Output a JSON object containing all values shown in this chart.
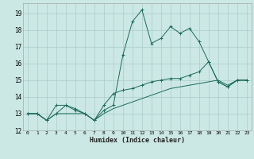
{
  "xlabel": "Humidex (Indice chaleur)",
  "background_color": "#cce8e4",
  "grid_color": "#aacccc",
  "line_color": "#1a6b5a",
  "x_range": [
    -0.5,
    23.5
  ],
  "y_range": [
    12.0,
    19.6
  ],
  "yticks": [
    12,
    13,
    14,
    15,
    16,
    17,
    18,
    19
  ],
  "xticks": [
    0,
    1,
    2,
    3,
    4,
    5,
    6,
    7,
    8,
    9,
    10,
    11,
    12,
    13,
    14,
    15,
    16,
    17,
    18,
    19,
    20,
    21,
    22,
    23
  ],
  "series1_x": [
    0,
    1,
    2,
    3,
    4,
    5,
    6,
    7,
    8,
    9,
    10,
    11,
    12,
    13,
    14,
    15,
    16,
    17,
    18,
    19,
    20,
    21,
    22,
    23
  ],
  "series1_y": [
    13.0,
    13.0,
    12.6,
    13.0,
    13.5,
    13.2,
    13.0,
    12.6,
    13.2,
    13.5,
    16.5,
    18.5,
    19.2,
    17.2,
    17.5,
    18.2,
    17.8,
    18.1,
    17.3,
    16.1,
    14.9,
    14.6,
    15.0,
    15.0
  ],
  "series2_x": [
    0,
    1,
    2,
    3,
    4,
    5,
    6,
    7,
    8,
    9,
    10,
    11,
    12,
    13,
    14,
    15,
    16,
    17,
    18,
    19,
    20,
    21,
    22,
    23
  ],
  "series2_y": [
    13.0,
    13.0,
    12.6,
    13.5,
    13.5,
    13.3,
    13.0,
    12.6,
    13.5,
    14.2,
    14.4,
    14.5,
    14.7,
    14.9,
    15.0,
    15.1,
    15.1,
    15.3,
    15.5,
    16.1,
    14.9,
    14.6,
    15.0,
    15.0
  ],
  "series3_x": [
    0,
    1,
    2,
    3,
    4,
    5,
    6,
    7,
    8,
    9,
    10,
    11,
    12,
    13,
    14,
    15,
    16,
    17,
    18,
    19,
    20,
    21,
    22,
    23
  ],
  "series3_y": [
    13.0,
    13.0,
    12.6,
    13.0,
    13.0,
    13.0,
    13.0,
    12.6,
    13.0,
    13.3,
    13.5,
    13.7,
    13.9,
    14.1,
    14.3,
    14.5,
    14.6,
    14.7,
    14.8,
    14.9,
    15.0,
    14.7,
    15.0,
    15.0
  ]
}
